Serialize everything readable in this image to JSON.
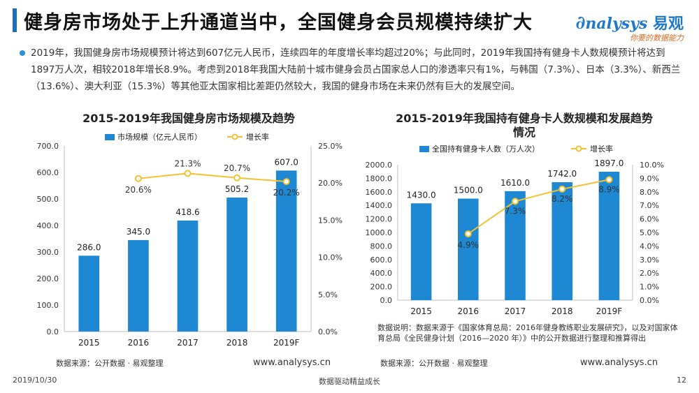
{
  "header": {
    "title": "健身房市场处于上升通道当中，全国健身会员规模持续扩大",
    "logo_brand": "nalysys",
    "logo_cn": "易观",
    "logo_slogan": "你要的数据能力"
  },
  "description": "2019年，我国健身房市场规模预计将达到607亿元人民币，连续四年的年度增长率均超过20%；与此同时，2019年我国持有健身卡人数规模预计将达到1897万人次，相较2018年增长8.9%。考虑到2018年我国大陆前十城市健身会员占国家总人口的渗透率只有1%，与韩国（7.3%）、日本（3.3%）、新西兰（13.6%）、澳大利亚（15.3%）等其他亚太国家相比差距仍然较大，我国的健身市场在未来仍然有巨大的发展空间。",
  "chart_data": [
    {
      "type": "bar",
      "title": "2015-2019年我国健身房市场规模及趋势",
      "categories": [
        "2015",
        "2016",
        "2017",
        "2018",
        "2019F"
      ],
      "series": [
        {
          "name": "市场规模（亿元人民币）",
          "type": "bar",
          "axis": "left",
          "values": [
            286.0,
            345.0,
            418.6,
            505.2,
            607.0
          ]
        },
        {
          "name": "增长率",
          "type": "line",
          "axis": "right",
          "values": [
            null,
            20.6,
            21.3,
            20.7,
            20.2
          ]
        }
      ],
      "ylim": [
        0,
        700
      ],
      "yticks": [
        "0.0",
        "100.0",
        "200.0",
        "300.0",
        "400.0",
        "500.0",
        "600.0",
        "700.0"
      ],
      "y2lim": [
        0,
        25
      ],
      "y2ticks": [
        "0.0%",
        "5.0%",
        "10.0%",
        "15.0%",
        "20.0%",
        "25.0%"
      ],
      "bar_labels": [
        "286.0",
        "345.0",
        "418.6",
        "505.2",
        "607.0"
      ],
      "line_labels": [
        "",
        "20.6%",
        "21.3%",
        "20.7%",
        "20.2%"
      ],
      "legend": "top",
      "source": "数据来源：公开数据 · 易观整理",
      "website": "www.analysys.cn",
      "bar_color": "#1e88d2",
      "line_color": "#f2c230"
    },
    {
      "type": "bar",
      "title_line1": "2015-2019年我国持有健身卡人数规模和发展趋势",
      "title_line2": "情况",
      "categories": [
        "2015",
        "2016",
        "2017",
        "2018",
        "2019F"
      ],
      "series": [
        {
          "name": "全国持有健身卡人数（万人次）",
          "type": "bar",
          "axis": "left",
          "values": [
            1430.0,
            1500.0,
            1610.0,
            1742.0,
            1897.0
          ]
        },
        {
          "name": "增长率",
          "type": "line",
          "axis": "right",
          "values": [
            null,
            4.9,
            7.3,
            8.2,
            8.9
          ]
        }
      ],
      "ylim": [
        0,
        2000
      ],
      "yticks": [
        "0.0",
        "200.0",
        "400.0",
        "600.0",
        "800.0",
        "1000.0",
        "1200.0",
        "1400.0",
        "1600.0",
        "1800.0",
        "2000.0"
      ],
      "y2lim": [
        0,
        10
      ],
      "y2ticks": [
        "0.0%",
        "1.0%",
        "2.0%",
        "3.0%",
        "4.0%",
        "5.0%",
        "6.0%",
        "7.0%",
        "8.0%",
        "9.0%",
        "10.0%"
      ],
      "bar_labels": [
        "1430.0",
        "1500.0",
        "1610.0",
        "1742.0",
        "1897.0"
      ],
      "line_labels": [
        "",
        "4.9%",
        "7.3%",
        "8.2%",
        "8.9%"
      ],
      "legend": "top",
      "note": "数据说明：数据来源于《国家体育总局：2016年健身教练职业发展研究》，以及对国家体育总局《全民健身计划（2016—2020 年）》中的公开数据进行整理和推算得出",
      "source": "数据来源：公开数据 · 易观整理",
      "website": "www.analysys.cn",
      "bar_color": "#1e88d2",
      "line_color": "#f2c230"
    }
  ],
  "footer": {
    "date": "2019/10/30",
    "slogan": "数据驱动精益成长",
    "page": "12"
  }
}
